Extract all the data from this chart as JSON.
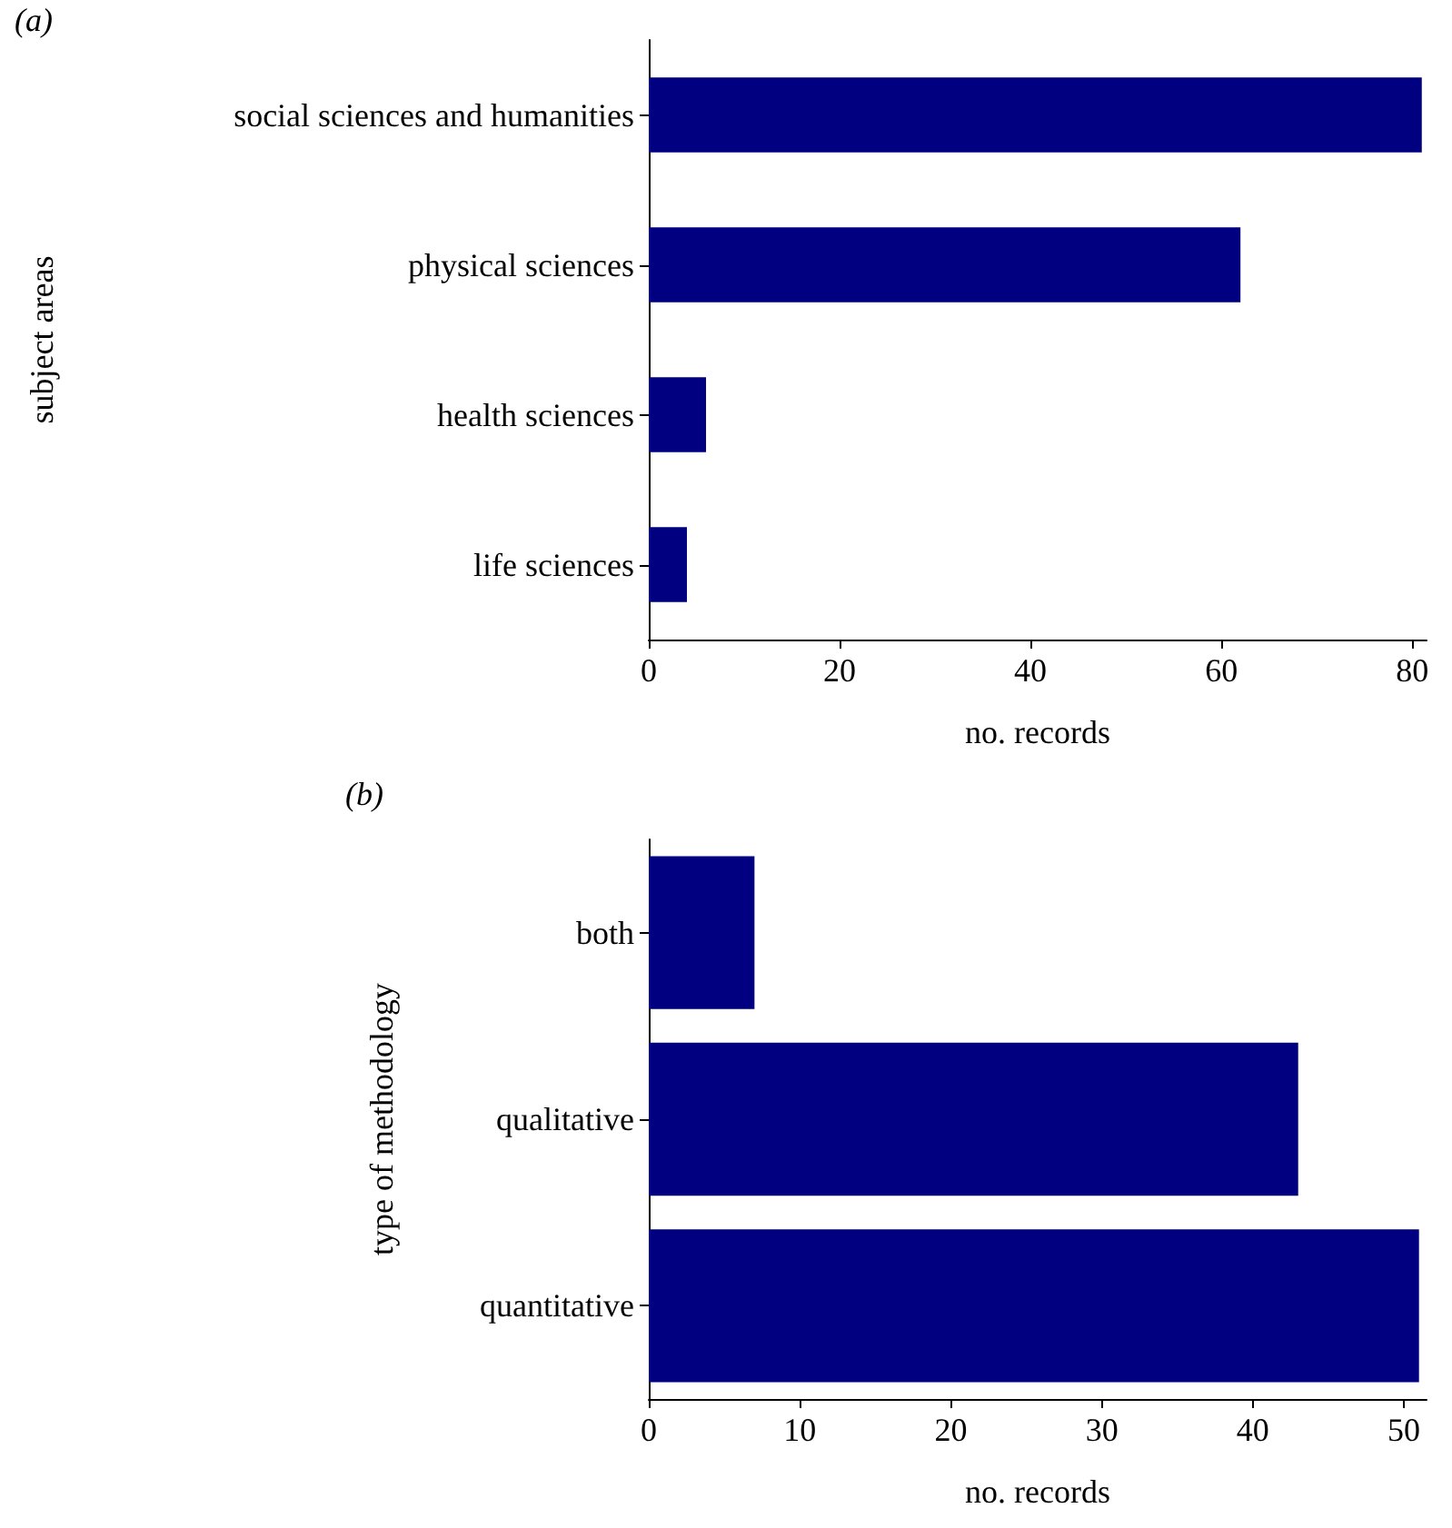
{
  "chart_data": [
    {
      "type": "bar",
      "title": "(a)",
      "orientation": "horizontal",
      "categories": [
        "social sciences and humanities",
        "physical sciences",
        "health sciences",
        "life sciences"
      ],
      "values": [
        81,
        62,
        6,
        4
      ],
      "color": "#000080",
      "xlabel": "no. records",
      "ylabel": "subject areas",
      "xlim": [
        0,
        81.5
      ],
      "xticks": [
        0,
        20,
        40,
        60,
        80
      ],
      "grid": false
    },
    {
      "type": "bar",
      "title": "(b)",
      "orientation": "horizontal",
      "categories": [
        "both",
        "qualitative",
        "quantitative"
      ],
      "values": [
        7,
        43,
        51
      ],
      "color": "#000080",
      "xlabel": "no. records",
      "ylabel": "type of methodology",
      "xlim": [
        0,
        51.5
      ],
      "xticks": [
        0,
        10,
        20,
        30,
        40,
        50
      ],
      "grid": false
    }
  ]
}
